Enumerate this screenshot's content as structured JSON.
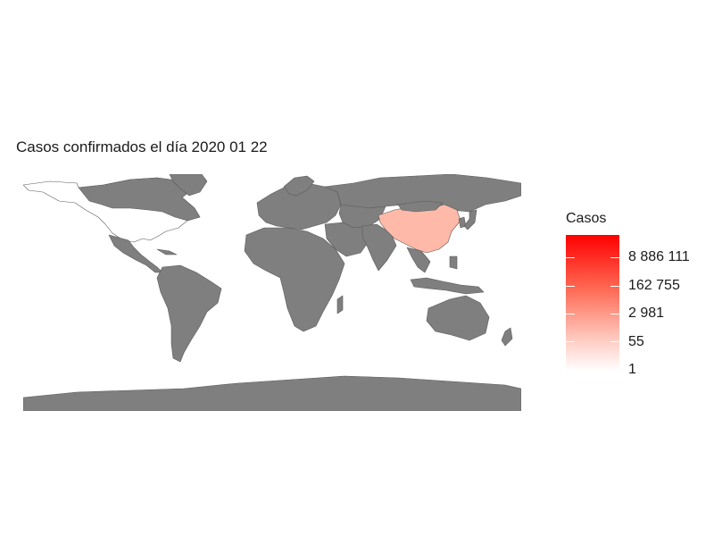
{
  "title": "Casos confirmados el día 2020 01 22",
  "legend": {
    "title": "Casos",
    "labels": [
      "8 886 111",
      "162 755",
      "2 981",
      "55",
      "1"
    ],
    "colors": {
      "high": "#ff0000",
      "low": "#ffffff"
    }
  },
  "map": {
    "fill_default": "#7f7f7f",
    "fill_no_data": "#ffffff",
    "highlighted_region": "China",
    "highlight_color": "#ffb9a8"
  }
}
